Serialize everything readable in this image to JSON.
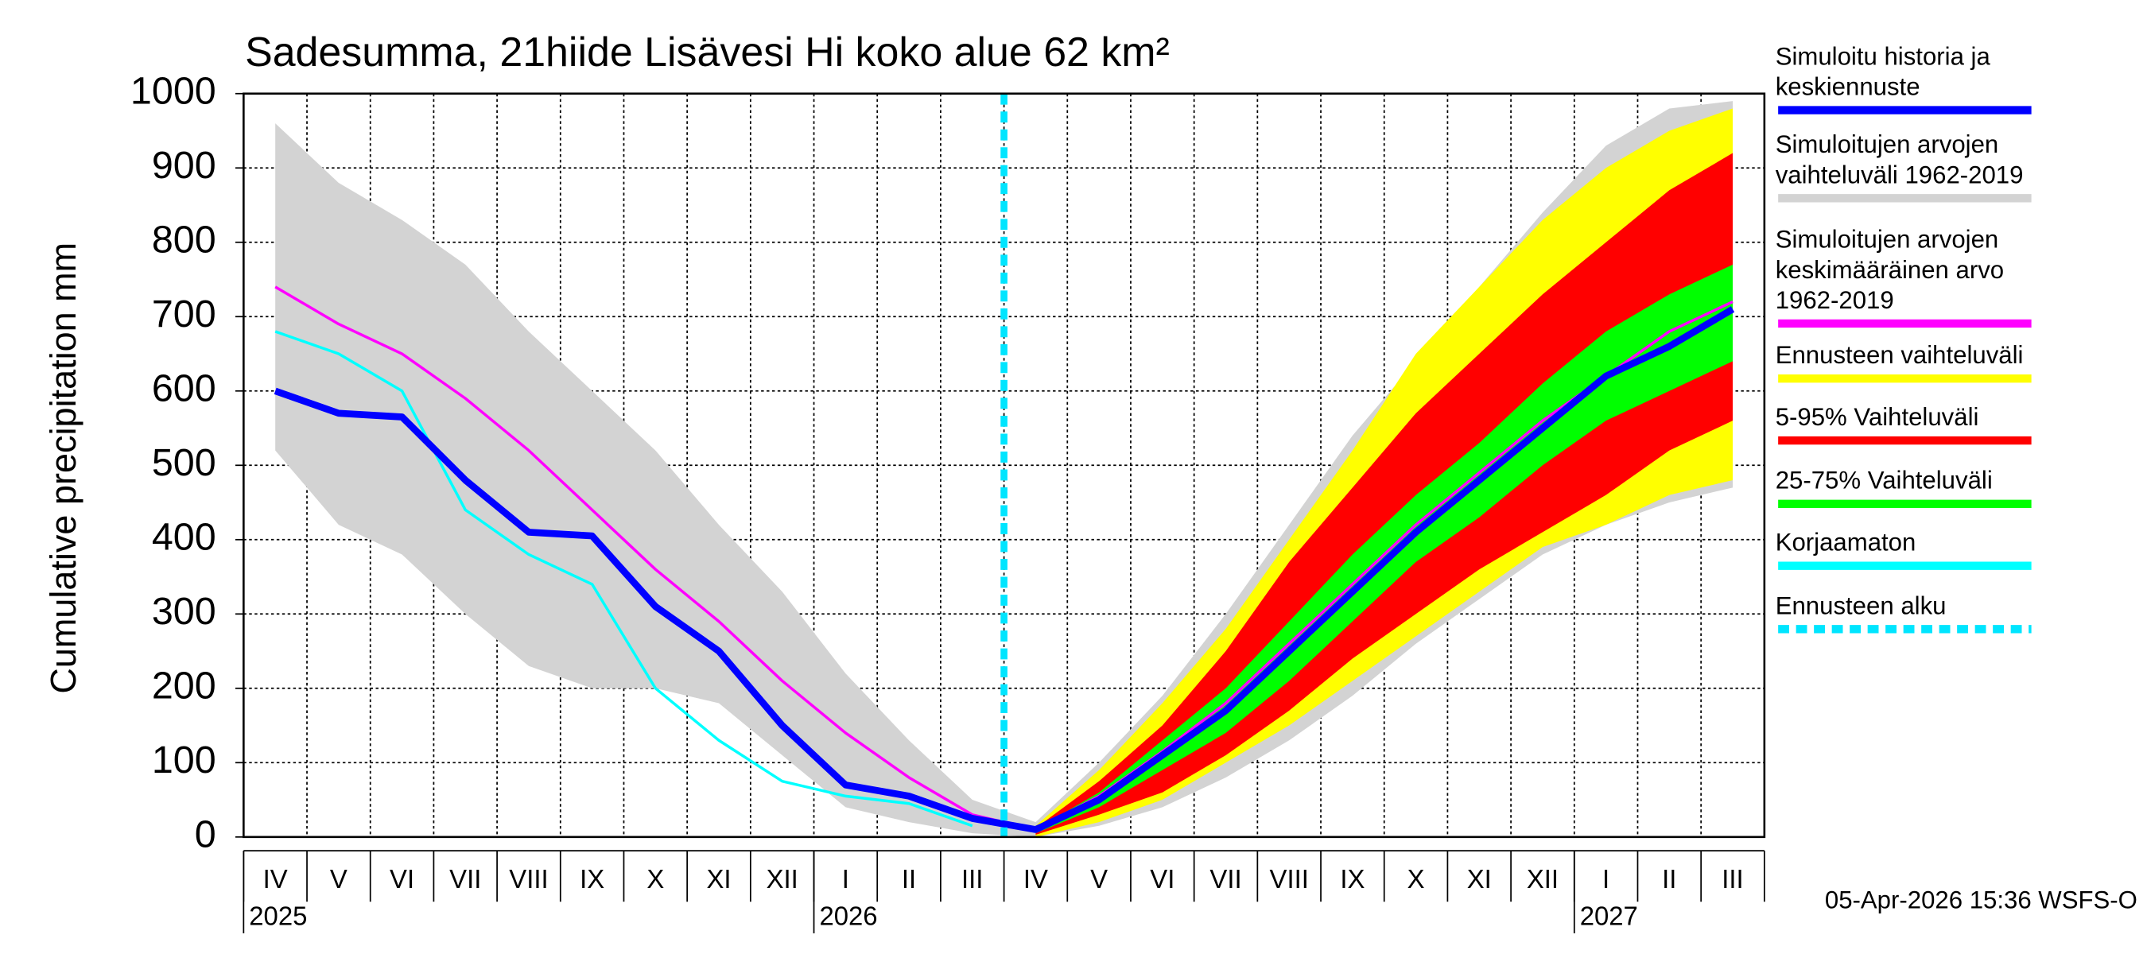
{
  "chart_data": {
    "type": "line",
    "title": "Sadesumma, 21hiide Lisävesi Hi koko alue 62 km²",
    "ylabel": "Cumulative precipitation   mm",
    "footer": "05-Apr-2026 15:36 WSFS-O",
    "categories": [
      "IV",
      "V",
      "VI",
      "VII",
      "VIII",
      "IX",
      "X",
      "XI",
      "XII",
      "I",
      "II",
      "III",
      "IV",
      "V",
      "VI",
      "VII",
      "VIII",
      "IX",
      "X",
      "XI",
      "XII",
      "I",
      "II",
      "III"
    ],
    "years": [
      "2025",
      "2026",
      "2027"
    ],
    "ylim": [
      0,
      1000
    ],
    "yticks": [
      0,
      100,
      200,
      300,
      400,
      500,
      600,
      700,
      800,
      900,
      1000
    ],
    "grid": true,
    "series": [
      {
        "name": "Simuloitu historia ja keskiennuste",
        "color": "#0000ff",
        "values": [
          600,
          570,
          565,
          480,
          410,
          405,
          310,
          250,
          150,
          70,
          55,
          25,
          10,
          50,
          110,
          170,
          250,
          330,
          410,
          480,
          550,
          620,
          660,
          710
        ]
      },
      {
        "name": "Simuloitujen arvojen vaihteluväli 1962-2019",
        "color": "#d3d3d3",
        "low": [
          520,
          420,
          380,
          300,
          230,
          200,
          200,
          180,
          110,
          40,
          20,
          5,
          0,
          15,
          40,
          80,
          130,
          190,
          260,
          320,
          380,
          420,
          450,
          470
        ],
        "high": [
          960,
          880,
          830,
          770,
          680,
          600,
          520,
          420,
          330,
          220,
          130,
          50,
          20,
          100,
          190,
          300,
          420,
          540,
          640,
          740,
          840,
          930,
          980,
          990
        ]
      },
      {
        "name": "Simuloitujen arvojen keskimääräinen arvo 1962-2019",
        "color": "#ff00ff",
        "values": [
          740,
          690,
          650,
          590,
          520,
          440,
          360,
          290,
          210,
          140,
          80,
          30,
          10,
          55,
          115,
          180,
          260,
          340,
          420,
          490,
          560,
          620,
          680,
          720
        ]
      },
      {
        "name": "Ennusteen vaihteluväli",
        "color": "#ffff00",
        "low": [
          null,
          null,
          null,
          null,
          null,
          null,
          null,
          null,
          null,
          null,
          null,
          null,
          0,
          20,
          50,
          100,
          150,
          210,
          270,
          330,
          390,
          420,
          460,
          480
        ],
        "high": [
          null,
          null,
          null,
          null,
          null,
          null,
          null,
          null,
          null,
          null,
          null,
          null,
          15,
          90,
          180,
          280,
          400,
          520,
          650,
          740,
          830,
          900,
          950,
          980
        ]
      },
      {
        "name": "5-95% Vaihteluväli",
        "color": "#ff0000",
        "low": [
          null,
          null,
          null,
          null,
          null,
          null,
          null,
          null,
          null,
          null,
          null,
          null,
          3,
          30,
          60,
          110,
          170,
          240,
          300,
          360,
          410,
          460,
          520,
          560
        ],
        "high": [
          null,
          null,
          null,
          null,
          null,
          null,
          null,
          null,
          null,
          null,
          null,
          null,
          12,
          75,
          150,
          250,
          370,
          470,
          570,
          650,
          730,
          800,
          870,
          920
        ]
      },
      {
        "name": "25-75% Vaihteluväli",
        "color": "#00ff00",
        "low": [
          null,
          null,
          null,
          null,
          null,
          null,
          null,
          null,
          null,
          null,
          null,
          null,
          5,
          40,
          90,
          140,
          210,
          290,
          370,
          430,
          500,
          560,
          600,
          640
        ],
        "high": [
          null,
          null,
          null,
          null,
          null,
          null,
          null,
          null,
          null,
          null,
          null,
          null,
          10,
          60,
          130,
          200,
          290,
          380,
          460,
          530,
          610,
          680,
          730,
          770
        ]
      },
      {
        "name": "Korjaamaton",
        "color": "#00ffff",
        "values": [
          680,
          650,
          600,
          440,
          380,
          340,
          200,
          130,
          75,
          55,
          45,
          15,
          null,
          null,
          null,
          null,
          null,
          null,
          null,
          null,
          null,
          null,
          null,
          null
        ]
      }
    ],
    "forecast_start": {
      "name": "Ennusteen alku",
      "color": "#00e5ff"
    }
  }
}
